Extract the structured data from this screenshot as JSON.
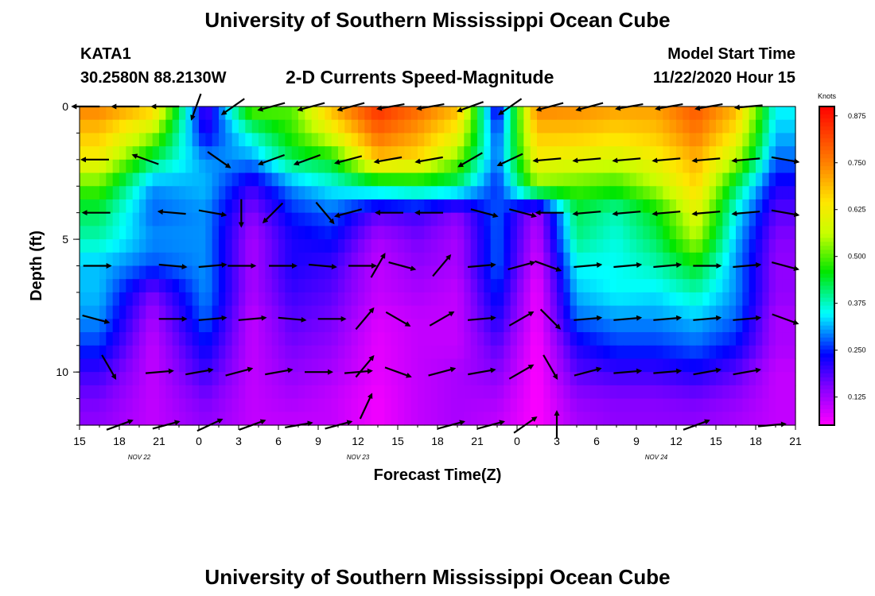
{
  "header": {
    "title": "University of Southern Mississippi Ocean Cube",
    "station": "KATA1",
    "coords": "30.2580N 88.2130W",
    "subtitle": "2-D Currents Speed-Magnitude",
    "model_label": "Model Start Time",
    "model_time": "11/22/2020 Hour 15"
  },
  "footer": {
    "title": "University of Southern Mississippi Ocean Cube"
  },
  "chart_data": {
    "type": "heatmap",
    "title": "2-D Currents Speed-Magnitude",
    "xlabel": "Forecast Time(Z)",
    "ylabel": "Depth (ft)",
    "x_range": [
      0,
      54
    ],
    "y_range": [
      0,
      12
    ],
    "x_ticks": [
      {
        "t": 0,
        "label": "15"
      },
      {
        "t": 3,
        "label": "18"
      },
      {
        "t": 6,
        "label": "21"
      },
      {
        "t": 9,
        "label": "0"
      },
      {
        "t": 12,
        "label": "3"
      },
      {
        "t": 15,
        "label": "6"
      },
      {
        "t": 18,
        "label": "9"
      },
      {
        "t": 21,
        "label": "12"
      },
      {
        "t": 24,
        "label": "15"
      },
      {
        "t": 27,
        "label": "18"
      },
      {
        "t": 30,
        "label": "21"
      },
      {
        "t": 33,
        "label": "0"
      },
      {
        "t": 36,
        "label": "3"
      },
      {
        "t": 39,
        "label": "6"
      },
      {
        "t": 42,
        "label": "9"
      },
      {
        "t": 45,
        "label": "12"
      },
      {
        "t": 48,
        "label": "15"
      },
      {
        "t": 51,
        "label": "18"
      },
      {
        "t": 54,
        "label": "21"
      }
    ],
    "y_ticks": [
      {
        "d": 0,
        "label": "0"
      },
      {
        "d": 5,
        "label": "5"
      },
      {
        "d": 10,
        "label": "10"
      }
    ],
    "date_labels": [
      {
        "t": 4.5,
        "label": "NOV  22"
      },
      {
        "t": 21,
        "label": "NOV  23"
      },
      {
        "t": 43.5,
        "label": "NOV  24"
      }
    ],
    "colorbar": {
      "unit": "Knots",
      "min": 0.05,
      "max": 0.9,
      "ticks": [
        "0.875",
        "0.750",
        "0.625",
        "0.500",
        "0.375",
        "0.250",
        "0.125"
      ],
      "tick_values": [
        0.875,
        0.75,
        0.625,
        0.5,
        0.375,
        0.25,
        0.125
      ]
    },
    "depths": [
      0,
      2,
      4,
      6,
      8,
      10,
      12
    ],
    "times": [
      1.5,
      5.5,
      9.5,
      13,
      16,
      19,
      22.5,
      25.5,
      28.5,
      31.5,
      34.5,
      37.5,
      40.5,
      43.5,
      46.5,
      49.5,
      52.5
    ],
    "speed": [
      [
        0.75,
        0.68,
        0.18,
        0.52,
        0.5,
        0.7,
        0.85,
        0.78,
        0.7,
        0.2,
        0.75,
        0.74,
        0.72,
        0.72,
        0.8,
        0.7,
        0.35
      ],
      [
        0.68,
        0.55,
        0.22,
        0.38,
        0.48,
        0.6,
        0.78,
        0.72,
        0.62,
        0.26,
        0.68,
        0.68,
        0.66,
        0.68,
        0.76,
        0.64,
        0.32
      ],
      [
        0.62,
        0.42,
        0.3,
        0.3,
        0.42,
        0.45,
        0.68,
        0.65,
        0.52,
        0.28,
        0.62,
        0.6,
        0.58,
        0.62,
        0.7,
        0.55,
        0.28
      ],
      [
        0.5,
        0.3,
        0.32,
        0.2,
        0.3,
        0.35,
        0.4,
        0.42,
        0.4,
        0.25,
        0.52,
        0.5,
        0.48,
        0.55,
        0.66,
        0.42,
        0.22
      ],
      [
        0.42,
        0.28,
        0.3,
        0.15,
        0.25,
        0.28,
        0.18,
        0.2,
        0.15,
        0.28,
        0.12,
        0.42,
        0.38,
        0.45,
        0.6,
        0.35,
        0.18
      ],
      [
        0.38,
        0.3,
        0.3,
        0.12,
        0.22,
        0.24,
        0.12,
        0.16,
        0.12,
        0.28,
        0.1,
        0.4,
        0.36,
        0.42,
        0.55,
        0.32,
        0.15
      ],
      [
        0.32,
        0.27,
        0.3,
        0.12,
        0.22,
        0.2,
        0.1,
        0.14,
        0.12,
        0.28,
        0.08,
        0.35,
        0.35,
        0.38,
        0.45,
        0.3,
        0.14
      ],
      [
        0.32,
        0.16,
        0.3,
        0.12,
        0.2,
        0.18,
        0.1,
        0.12,
        0.1,
        0.25,
        0.06,
        0.32,
        0.35,
        0.34,
        0.38,
        0.3,
        0.14
      ],
      [
        0.3,
        0.12,
        0.28,
        0.1,
        0.18,
        0.16,
        0.08,
        0.1,
        0.1,
        0.22,
        0.06,
        0.28,
        0.3,
        0.3,
        0.32,
        0.28,
        0.12
      ],
      [
        0.26,
        0.1,
        0.24,
        0.1,
        0.16,
        0.14,
        0.07,
        0.1,
        0.1,
        0.18,
        0.05,
        0.22,
        0.26,
        0.26,
        0.28,
        0.24,
        0.12
      ],
      [
        0.2,
        0.1,
        0.2,
        0.1,
        0.14,
        0.12,
        0.07,
        0.1,
        0.12,
        0.15,
        0.05,
        0.18,
        0.2,
        0.2,
        0.22,
        0.18,
        0.1
      ],
      [
        0.16,
        0.1,
        0.16,
        0.1,
        0.12,
        0.1,
        0.06,
        0.1,
        0.12,
        0.12,
        0.05,
        0.14,
        0.15,
        0.15,
        0.16,
        0.14,
        0.1
      ],
      [
        0.14,
        0.1,
        0.14,
        0.1,
        0.1,
        0.1,
        0.06,
        0.1,
        0.12,
        0.1,
        0.05,
        0.12,
        0.14,
        0.14,
        0.14,
        0.12,
        0.1
      ]
    ],
    "vectors": [
      {
        "t": 0.5,
        "d": 0,
        "dir": 180
      },
      {
        "t": 3.5,
        "d": 0,
        "dir": 180
      },
      {
        "t": 6.5,
        "d": 0,
        "dir": 180
      },
      {
        "t": 8.8,
        "d": 0,
        "dir": 250
      },
      {
        "t": 11.6,
        "d": 0,
        "dir": 215
      },
      {
        "t": 14.5,
        "d": 0,
        "dir": 195
      },
      {
        "t": 17.5,
        "d": 0,
        "dir": 195
      },
      {
        "t": 20.5,
        "d": 0,
        "dir": 195
      },
      {
        "t": 23.5,
        "d": 0,
        "dir": 190
      },
      {
        "t": 26.5,
        "d": 0,
        "dir": 190
      },
      {
        "t": 29.5,
        "d": 0,
        "dir": 200
      },
      {
        "t": 32.5,
        "d": 0,
        "dir": 215
      },
      {
        "t": 35.5,
        "d": 0,
        "dir": 195
      },
      {
        "t": 38.5,
        "d": 0,
        "dir": 195
      },
      {
        "t": 41.5,
        "d": 0,
        "dir": 190
      },
      {
        "t": 44.5,
        "d": 0,
        "dir": 190
      },
      {
        "t": 47.5,
        "d": 0,
        "dir": 190
      },
      {
        "t": 50.5,
        "d": 0,
        "dir": 185
      },
      {
        "t": 1.2,
        "d": 2,
        "dir": 180
      },
      {
        "t": 5.0,
        "d": 2,
        "dir": 160
      },
      {
        "t": 10.5,
        "d": 2,
        "dir": 325
      },
      {
        "t": 14.5,
        "d": 2,
        "dir": 200
      },
      {
        "t": 17.2,
        "d": 2,
        "dir": 200
      },
      {
        "t": 20.3,
        "d": 2,
        "dir": 195
      },
      {
        "t": 23.3,
        "d": 2,
        "dir": 190
      },
      {
        "t": 26.4,
        "d": 2,
        "dir": 190
      },
      {
        "t": 29.5,
        "d": 2,
        "dir": 210
      },
      {
        "t": 32.5,
        "d": 2,
        "dir": 205
      },
      {
        "t": 35.3,
        "d": 2,
        "dir": 185
      },
      {
        "t": 38.3,
        "d": 2,
        "dir": 185
      },
      {
        "t": 41.3,
        "d": 2,
        "dir": 185
      },
      {
        "t": 44.3,
        "d": 2,
        "dir": 185
      },
      {
        "t": 47.3,
        "d": 2,
        "dir": 185
      },
      {
        "t": 50.3,
        "d": 2,
        "dir": 185
      },
      {
        "t": 53.2,
        "d": 2,
        "dir": 350
      },
      {
        "t": 1.3,
        "d": 4,
        "dir": 180
      },
      {
        "t": 7.0,
        "d": 4,
        "dir": 175
      },
      {
        "t": 10.0,
        "d": 4,
        "dir": 350
      },
      {
        "t": 12.2,
        "d": 4,
        "dir": 270
      },
      {
        "t": 14.6,
        "d": 4,
        "dir": 225
      },
      {
        "t": 18.5,
        "d": 4,
        "dir": 310
      },
      {
        "t": 20.3,
        "d": 4,
        "dir": 195
      },
      {
        "t": 23.4,
        "d": 4,
        "dir": 180
      },
      {
        "t": 26.4,
        "d": 4,
        "dir": 180
      },
      {
        "t": 30.5,
        "d": 4,
        "dir": 345
      },
      {
        "t": 33.4,
        "d": 4,
        "dir": 345
      },
      {
        "t": 35.5,
        "d": 4,
        "dir": 180
      },
      {
        "t": 38.3,
        "d": 4,
        "dir": 185
      },
      {
        "t": 41.3,
        "d": 4,
        "dir": 185
      },
      {
        "t": 44.3,
        "d": 4,
        "dir": 185
      },
      {
        "t": 47.3,
        "d": 4,
        "dir": 185
      },
      {
        "t": 50.3,
        "d": 4,
        "dir": 185
      },
      {
        "t": 53.2,
        "d": 4,
        "dir": 350
      },
      {
        "t": 1.3,
        "d": 6,
        "dir": 0
      },
      {
        "t": 7.0,
        "d": 6,
        "dir": 355
      },
      {
        "t": 10.0,
        "d": 6,
        "dir": 5
      },
      {
        "t": 12.2,
        "d": 6,
        "dir": 0
      },
      {
        "t": 15.3,
        "d": 6,
        "dir": 0
      },
      {
        "t": 18.3,
        "d": 6,
        "dir": 355
      },
      {
        "t": 21.3,
        "d": 6,
        "dir": 0
      },
      {
        "t": 22.5,
        "d": 6,
        "dir": 60
      },
      {
        "t": 24.3,
        "d": 6,
        "dir": 345
      },
      {
        "t": 27.3,
        "d": 6,
        "dir": 50
      },
      {
        "t": 30.3,
        "d": 6,
        "dir": 5
      },
      {
        "t": 33.3,
        "d": 6,
        "dir": 15
      },
      {
        "t": 35.3,
        "d": 6,
        "dir": 340
      },
      {
        "t": 38.3,
        "d": 6,
        "dir": 5
      },
      {
        "t": 41.3,
        "d": 6,
        "dir": 5
      },
      {
        "t": 44.3,
        "d": 6,
        "dir": 5
      },
      {
        "t": 47.3,
        "d": 6,
        "dir": 0
      },
      {
        "t": 50.3,
        "d": 6,
        "dir": 5
      },
      {
        "t": 53.2,
        "d": 6,
        "dir": 345
      },
      {
        "t": 1.2,
        "d": 8,
        "dir": 345
      },
      {
        "t": 7.0,
        "d": 8,
        "dir": 0
      },
      {
        "t": 10.0,
        "d": 8,
        "dir": 5
      },
      {
        "t": 13.0,
        "d": 8,
        "dir": 5
      },
      {
        "t": 16.0,
        "d": 8,
        "dir": 355
      },
      {
        "t": 19.0,
        "d": 8,
        "dir": 0
      },
      {
        "t": 21.5,
        "d": 8,
        "dir": 50
      },
      {
        "t": 24.0,
        "d": 8,
        "dir": 330
      },
      {
        "t": 27.3,
        "d": 8,
        "dir": 30
      },
      {
        "t": 30.3,
        "d": 8,
        "dir": 5
      },
      {
        "t": 33.3,
        "d": 8,
        "dir": 30
      },
      {
        "t": 35.5,
        "d": 8,
        "dir": 315
      },
      {
        "t": 38.3,
        "d": 8,
        "dir": 5
      },
      {
        "t": 41.3,
        "d": 8,
        "dir": 5
      },
      {
        "t": 44.3,
        "d": 8,
        "dir": 5
      },
      {
        "t": 47.3,
        "d": 8,
        "dir": 5
      },
      {
        "t": 50.3,
        "d": 8,
        "dir": 5
      },
      {
        "t": 53.2,
        "d": 8,
        "dir": 340
      },
      {
        "t": 2.2,
        "d": 9.8,
        "dir": 300
      },
      {
        "t": 6.0,
        "d": 10,
        "dir": 5
      },
      {
        "t": 9.0,
        "d": 10,
        "dir": 10
      },
      {
        "t": 12.0,
        "d": 10,
        "dir": 15
      },
      {
        "t": 15.0,
        "d": 10,
        "dir": 10
      },
      {
        "t": 18.0,
        "d": 10,
        "dir": 0
      },
      {
        "t": 21.0,
        "d": 10,
        "dir": 5
      },
      {
        "t": 21.5,
        "d": 9.8,
        "dir": 50
      },
      {
        "t": 24.0,
        "d": 10,
        "dir": 340
      },
      {
        "t": 27.3,
        "d": 10,
        "dir": 15
      },
      {
        "t": 30.3,
        "d": 10,
        "dir": 10
      },
      {
        "t": 33.3,
        "d": 10,
        "dir": 30
      },
      {
        "t": 35.5,
        "d": 9.8,
        "dir": 300
      },
      {
        "t": 38.3,
        "d": 10,
        "dir": 15
      },
      {
        "t": 41.3,
        "d": 10,
        "dir": 5
      },
      {
        "t": 44.3,
        "d": 10,
        "dir": 5
      },
      {
        "t": 47.3,
        "d": 10,
        "dir": 10
      },
      {
        "t": 50.3,
        "d": 10,
        "dir": 10
      },
      {
        "t": 3.0,
        "d": 12,
        "dir": 20
      },
      {
        "t": 6.5,
        "d": 12,
        "dir": 15
      },
      {
        "t": 9.8,
        "d": 12,
        "dir": 25
      },
      {
        "t": 13.0,
        "d": 12,
        "dir": 20
      },
      {
        "t": 16.5,
        "d": 12,
        "dir": 10
      },
      {
        "t": 19.5,
        "d": 12,
        "dir": 15
      },
      {
        "t": 21.6,
        "d": 11.3,
        "dir": 65
      },
      {
        "t": 28.0,
        "d": 12,
        "dir": 15
      },
      {
        "t": 31.0,
        "d": 12,
        "dir": 15
      },
      {
        "t": 33.6,
        "d": 12,
        "dir": 35
      },
      {
        "t": 36.0,
        "d": 12,
        "dir": 90
      },
      {
        "t": 46.5,
        "d": 12,
        "dir": 20
      },
      {
        "t": 52.2,
        "d": 12,
        "dir": 5
      }
    ]
  }
}
